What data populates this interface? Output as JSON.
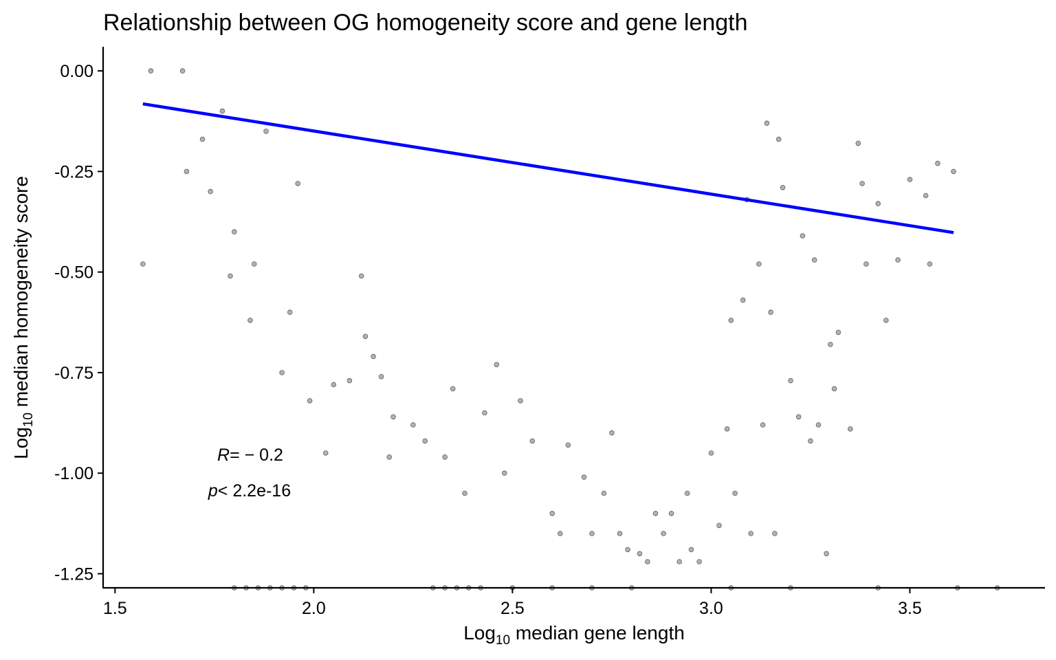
{
  "chart_data": {
    "type": "scatter",
    "title": "Relationship between OG homogeneity score and gene length",
    "xlabel": {
      "prefix": "Log",
      "subscript": "10",
      "rest": " median gene length"
    },
    "ylabel": {
      "prefix": "Log",
      "subscript": "10",
      "rest": " median homogeneity score"
    },
    "xlim": [
      1.47,
      3.84
    ],
    "ylim": [
      -1.285,
      0.06
    ],
    "xticks": [
      1.5,
      2.0,
      2.5,
      3.0,
      3.5
    ],
    "xtick_labels": [
      "1.5",
      "2.0",
      "2.5",
      "3.0",
      "3.5"
    ],
    "yticks": [
      0.0,
      -0.25,
      -0.5,
      -0.75,
      -1.0,
      -1.25
    ],
    "ytick_labels": [
      "0.00",
      "-0.25",
      "-0.50",
      "-0.75",
      "-1.00",
      "-1.25"
    ],
    "grid": false,
    "legend": "none",
    "point_color": "#000000",
    "point_opacity": 0.3,
    "fit_line_color": "#0000ff",
    "fit_line": {
      "x": [
        1.57,
        3.61
      ],
      "y": [
        -0.082,
        -0.402
      ]
    },
    "annotation": {
      "r_label": "R",
      "r_value": "= − 0.2",
      "p_label": "p",
      "p_value": "< 2.2e-16"
    },
    "points": [
      [
        1.57,
        -0.48
      ],
      [
        1.59,
        0.0
      ],
      [
        1.67,
        0.0
      ],
      [
        1.68,
        -0.25
      ],
      [
        1.72,
        -0.17
      ],
      [
        1.74,
        -0.3
      ],
      [
        1.77,
        -0.1
      ],
      [
        1.79,
        -0.51
      ],
      [
        1.8,
        -0.4
      ],
      [
        1.84,
        -0.62
      ],
      [
        1.85,
        -0.48
      ],
      [
        1.88,
        -0.15
      ],
      [
        1.92,
        -0.75
      ],
      [
        1.94,
        -0.6
      ],
      [
        1.96,
        -0.28
      ],
      [
        1.99,
        -0.82
      ],
      [
        2.03,
        -0.95
      ],
      [
        2.05,
        -0.78
      ],
      [
        2.09,
        -0.77
      ],
      [
        2.12,
        -0.51
      ],
      [
        2.13,
        -0.66
      ],
      [
        2.15,
        -0.71
      ],
      [
        2.17,
        -0.76
      ],
      [
        2.19,
        -0.96
      ],
      [
        2.2,
        -0.86
      ],
      [
        2.25,
        -0.88
      ],
      [
        2.28,
        -0.92
      ],
      [
        2.33,
        -0.96
      ],
      [
        2.35,
        -0.79
      ],
      [
        2.38,
        -1.05
      ],
      [
        2.43,
        -0.85
      ],
      [
        2.46,
        -0.73
      ],
      [
        2.48,
        -1.0
      ],
      [
        2.52,
        -0.82
      ],
      [
        2.55,
        -0.92
      ],
      [
        2.6,
        -1.1
      ],
      [
        2.62,
        -1.15
      ],
      [
        2.64,
        -0.93
      ],
      [
        2.68,
        -1.01
      ],
      [
        2.7,
        -1.15
      ],
      [
        2.73,
        -1.05
      ],
      [
        2.75,
        -0.9
      ],
      [
        2.77,
        -1.15
      ],
      [
        2.79,
        -1.19
      ],
      [
        2.82,
        -1.2
      ],
      [
        2.84,
        -1.22
      ],
      [
        2.86,
        -1.1
      ],
      [
        2.88,
        -1.15
      ],
      [
        2.9,
        -1.1
      ],
      [
        2.92,
        -1.22
      ],
      [
        2.94,
        -1.05
      ],
      [
        2.95,
        -1.19
      ],
      [
        2.97,
        -1.22
      ],
      [
        3.0,
        -0.95
      ],
      [
        3.02,
        -1.13
      ],
      [
        3.04,
        -0.89
      ],
      [
        3.06,
        -1.05
      ],
      [
        3.1,
        -1.15
      ],
      [
        3.13,
        -0.88
      ],
      [
        3.16,
        -1.15
      ],
      [
        3.2,
        -0.77
      ],
      [
        3.22,
        -0.86
      ],
      [
        3.25,
        -0.92
      ],
      [
        3.27,
        -0.88
      ],
      [
        3.29,
        -1.2
      ],
      [
        3.3,
        -0.68
      ],
      [
        3.31,
        -0.79
      ],
      [
        3.32,
        -0.65
      ],
      [
        3.35,
        -0.89
      ],
      [
        3.37,
        -0.18
      ],
      [
        3.38,
        -0.28
      ],
      [
        3.39,
        -0.48
      ],
      [
        3.42,
        -0.33
      ],
      [
        3.44,
        -0.62
      ],
      [
        3.47,
        -0.47
      ],
      [
        3.5,
        -0.27
      ],
      [
        3.54,
        -0.31
      ],
      [
        3.55,
        -0.48
      ],
      [
        3.57,
        -0.23
      ],
      [
        3.61,
        -0.25
      ],
      [
        3.18,
        -0.29
      ],
      [
        3.23,
        -0.41
      ],
      [
        3.26,
        -0.47
      ],
      [
        3.12,
        -0.48
      ],
      [
        3.08,
        -0.57
      ],
      [
        3.05,
        -0.62
      ],
      [
        3.15,
        -0.6
      ],
      [
        3.09,
        -0.32
      ],
      [
        3.14,
        -0.13
      ],
      [
        3.17,
        -0.17
      ]
    ],
    "bottom_row_x": [
      1.8,
      1.83,
      1.86,
      1.89,
      1.92,
      1.95,
      1.98,
      2.3,
      2.33,
      2.36,
      2.39,
      2.42,
      2.5,
      2.6,
      2.7,
      2.8,
      3.05,
      3.2,
      3.42,
      3.62,
      3.72
    ]
  }
}
